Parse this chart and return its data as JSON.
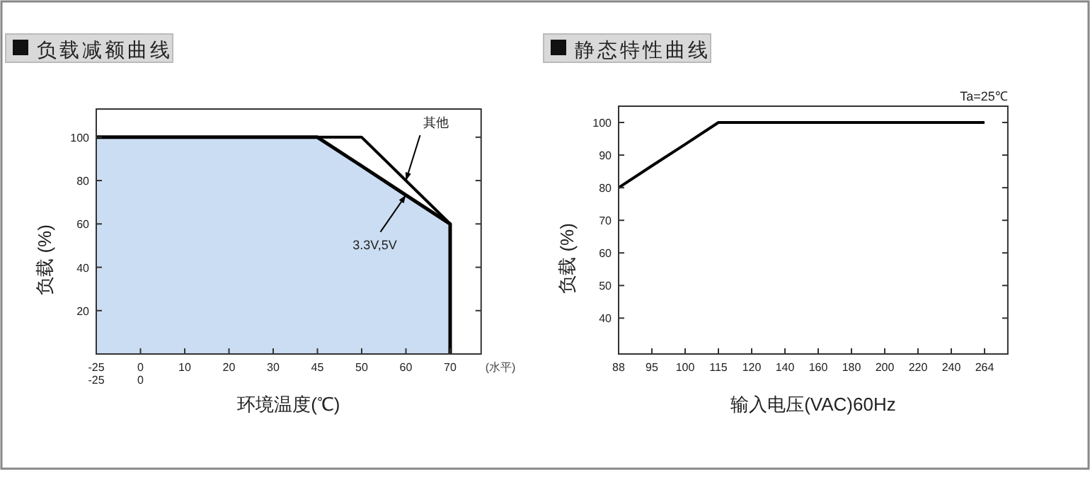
{
  "chart_data": [
    {
      "type": "line",
      "title": "负载减额曲线",
      "xlabel": "环境温度(℃)",
      "ylabel": "负载 (%)",
      "categories": [
        "-25\n-25",
        "0\n0",
        "10",
        "20",
        "30",
        "45",
        "50",
        "60",
        "70"
      ],
      "ylim": [
        0,
        113
      ],
      "yticks": [
        20,
        40,
        60,
        80,
        100
      ],
      "series": [
        {
          "type": "area",
          "color": "#cbddf2",
          "values": [
            100,
            100,
            100,
            100,
            100,
            100,
            86.7,
            73.3,
            60
          ]
        },
        {
          "type": "line",
          "color": "#000000",
          "values": [
            100,
            100,
            100,
            100,
            100,
            100,
            100,
            80,
            60
          ]
        }
      ],
      "annotations": [
        "(水平)",
        {
          "text": "其他",
          "x": "60",
          "y": 80
        },
        {
          "text": "3.3V,5V",
          "x": "60",
          "y": 73.3
        }
      ]
    },
    {
      "type": "line",
      "title": "静态特性曲线",
      "xlabel": "输入电压(VAC)60Hz",
      "ylabel": "负载 (%)",
      "categories": [
        "88",
        "95",
        "100",
        "115",
        "120",
        "140",
        "160",
        "180",
        "200",
        "220",
        "240",
        "264"
      ],
      "ylim": [
        29,
        105
      ],
      "yticks": [
        40,
        50,
        60,
        70,
        80,
        90,
        100
      ],
      "series": [
        {
          "type": "line",
          "color": "#000000",
          "values": [
            80,
            86.7,
            93.3,
            100,
            100,
            100,
            100,
            100,
            100,
            100,
            100,
            100
          ]
        }
      ],
      "annotations": [
        "Ta=25℃"
      ]
    }
  ]
}
